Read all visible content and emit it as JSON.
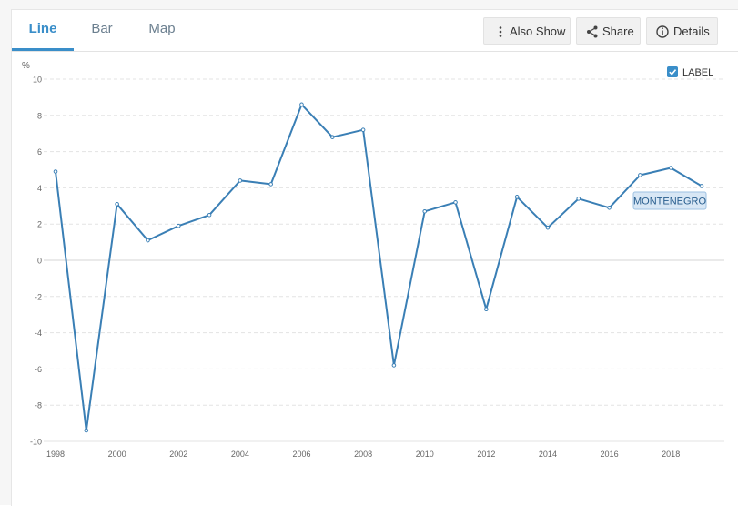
{
  "tabs": [
    {
      "label": "Line",
      "active": true
    },
    {
      "label": "Bar",
      "active": false
    },
    {
      "label": "Map",
      "active": false
    }
  ],
  "toolbar": {
    "also_show_label": "Also Show",
    "also_show_icon": "vertical-dots-icon",
    "share_label": "Share",
    "share_icon": "share-icon",
    "details_label": "Details",
    "details_icon": "info-circle-icon"
  },
  "label_toggle": {
    "checked": true,
    "text": "LABEL"
  },
  "colors": {
    "accent": "#3a8ec9",
    "line": "#3a7fb5",
    "label_bg": "#d8e7f5",
    "grid": "#e3e3e3"
  },
  "chart_data": {
    "type": "line",
    "ylabel": "%",
    "ylim": [
      -10,
      10
    ],
    "yticks": [
      10,
      8,
      6,
      4,
      2,
      0,
      -2,
      -4,
      -6,
      -8,
      -10
    ],
    "xlim": [
      1998,
      2019
    ],
    "xticks": [
      1998,
      2000,
      2002,
      2004,
      2006,
      2008,
      2010,
      2012,
      2014,
      2016,
      2018
    ],
    "grid": true,
    "series": [
      {
        "name": "MONTENEGRO",
        "x": [
          1998,
          1999,
          2000,
          2001,
          2002,
          2003,
          2004,
          2005,
          2006,
          2007,
          2008,
          2009,
          2010,
          2011,
          2012,
          2013,
          2014,
          2015,
          2016,
          2017,
          2018,
          2019
        ],
        "values": [
          4.9,
          -9.4,
          3.1,
          1.1,
          1.9,
          2.5,
          4.4,
          4.2,
          8.6,
          6.8,
          7.2,
          -5.8,
          2.7,
          3.2,
          -2.7,
          3.5,
          1.8,
          3.4,
          2.9,
          4.7,
          5.1,
          4.1
        ]
      }
    ]
  }
}
